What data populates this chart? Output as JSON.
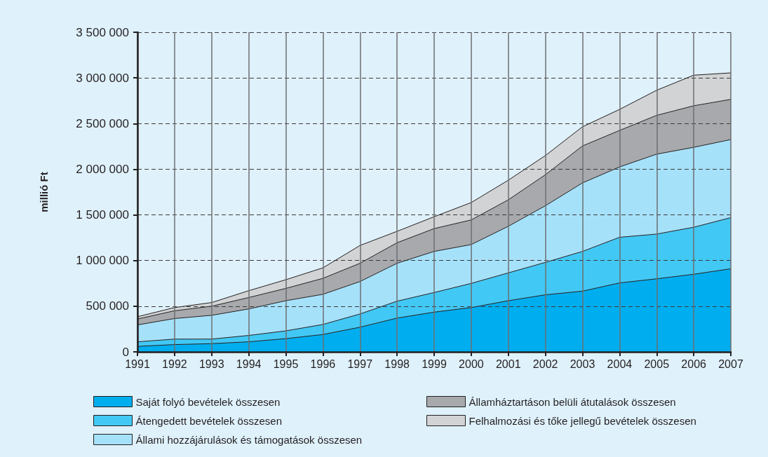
{
  "chart_data": {
    "type": "area",
    "ylabel": "millió Ft",
    "stacked": true,
    "grid": true,
    "legend": "bottom",
    "categories": [
      "1991",
      "1992",
      "1993",
      "1994",
      "1995",
      "1996",
      "1997",
      "1998",
      "1999",
      "2000",
      "2001",
      "2002",
      "2003",
      "2004",
      "2005",
      "2006",
      "2007"
    ],
    "ylim": [
      0,
      3500000
    ],
    "yticks": [
      {
        "value": 0,
        "label": "0"
      },
      {
        "value": 500000,
        "label": "500 000"
      },
      {
        "value": 1000000,
        "label": "1 000 000"
      },
      {
        "value": 1500000,
        "label": "1 500 000"
      },
      {
        "value": 2000000,
        "label": "2 000 000"
      },
      {
        "value": 2500000,
        "label": "2 500 000"
      },
      {
        "value": 3000000,
        "label": "3 000 000"
      },
      {
        "value": 3500000,
        "label": "3 500 000"
      }
    ],
    "series": [
      {
        "name": "Saját folyó bevételek összesen",
        "color": "#00aeef",
        "values": [
          60000,
          80000,
          90000,
          110000,
          145000,
          190000,
          270000,
          370000,
          435000,
          485000,
          560000,
          625000,
          665000,
          755000,
          800000,
          850000,
          910000
        ]
      },
      {
        "name": "Átengedett bevételek összesen",
        "color": "#42c8f4",
        "values": [
          50000,
          60000,
          50000,
          70000,
          85000,
          110000,
          145000,
          185000,
          215000,
          265000,
          305000,
          355000,
          435000,
          500000,
          490000,
          515000,
          560000
        ]
      },
      {
        "name": "Állami hozzájárulások és támogatások összesen",
        "color": "#a6e1fa",
        "values": [
          185000,
          225000,
          260000,
          290000,
          330000,
          330000,
          355000,
          415000,
          450000,
          425000,
          510000,
          620000,
          750000,
          770000,
          875000,
          875000,
          855000
        ]
      },
      {
        "name": "Államháztartáson belüli átutalások összesen",
        "color": "#a7a9ac",
        "values": [
          65000,
          85000,
          100000,
          125000,
          135000,
          175000,
          200000,
          225000,
          250000,
          270000,
          290000,
          340000,
          405000,
          400000,
          425000,
          455000,
          440000
        ]
      },
      {
        "name": "Felhalmozási és tőke jellegű bevételek összesen",
        "color": "#d1d3d4",
        "values": [
          25000,
          35000,
          40000,
          75000,
          95000,
          115000,
          195000,
          125000,
          130000,
          190000,
          215000,
          210000,
          210000,
          230000,
          275000,
          335000,
          290000
        ]
      }
    ]
  }
}
